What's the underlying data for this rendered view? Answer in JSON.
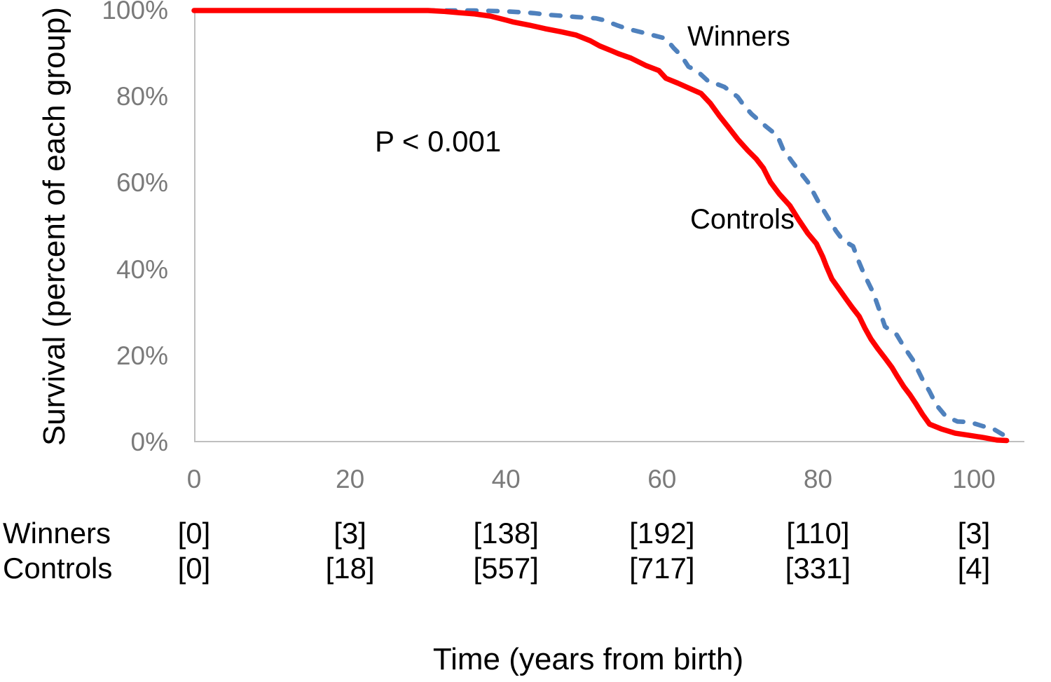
{
  "chart": {
    "annotations": {
      "p_value": "P < 0.001",
      "winners_label": "Winners",
      "controls_label": "Controls"
    },
    "colors": {
      "winners_line": "#4f81bd",
      "controls_line": "#ff0000",
      "axis_line": "#bfbfbf",
      "tick_text": "#7a7a7a",
      "text": "#000000"
    }
  },
  "chart_data": {
    "type": "line",
    "title": "",
    "xlabel": "Time (years from birth)",
    "ylabel": "Survival (percent of each group)",
    "xlim": [
      0,
      106.5
    ],
    "ylim": [
      0,
      100
    ],
    "grid": false,
    "legend_position": "inline-labels",
    "x_ticks": [
      {
        "v": 0,
        "label": "0"
      },
      {
        "v": 20,
        "label": "20"
      },
      {
        "v": 40,
        "label": "40"
      },
      {
        "v": 60,
        "label": "60"
      },
      {
        "v": 80,
        "label": "80"
      },
      {
        "v": 100,
        "label": "100"
      }
    ],
    "y_ticks": [
      {
        "v": 0,
        "label": "0%"
      },
      {
        "v": 20,
        "label": "20%"
      },
      {
        "v": 40,
        "label": "40%"
      },
      {
        "v": 60,
        "label": "60%"
      },
      {
        "v": 80,
        "label": "80%"
      },
      {
        "v": 100,
        "label": "100%"
      }
    ],
    "series": [
      {
        "name": "Winners",
        "style": "dashed",
        "color": "#4f81bd",
        "points": [
          [
            0,
            100
          ],
          [
            10,
            100
          ],
          [
            20,
            100
          ],
          [
            30,
            100
          ],
          [
            33.5,
            100
          ],
          [
            36,
            100
          ],
          [
            38,
            99.9
          ],
          [
            40,
            99.8
          ],
          [
            42,
            99.6
          ],
          [
            43.5,
            99.4
          ],
          [
            45.5,
            99.0
          ],
          [
            47,
            98.8
          ],
          [
            49,
            98.5
          ],
          [
            51.5,
            98.2
          ],
          [
            52.5,
            97.8
          ],
          [
            54.2,
            96.6
          ],
          [
            55.5,
            95.8
          ],
          [
            57.5,
            94.9
          ],
          [
            59,
            94.2
          ],
          [
            60.5,
            93.5
          ],
          [
            61.5,
            91.3
          ],
          [
            62.5,
            89.5
          ],
          [
            63.4,
            87.0
          ],
          [
            64.5,
            86.0
          ],
          [
            66,
            83.5
          ],
          [
            67,
            83.0
          ],
          [
            68,
            82.3
          ],
          [
            69.7,
            80.0
          ],
          [
            70.5,
            78.0
          ],
          [
            71.5,
            76.0
          ],
          [
            73.3,
            73.2
          ],
          [
            74.8,
            71.0
          ],
          [
            75.5,
            68.0
          ],
          [
            76.6,
            65.2
          ],
          [
            77.6,
            62.8
          ],
          [
            78.7,
            60.3
          ],
          [
            80,
            55.9
          ],
          [
            81.4,
            51.7
          ],
          [
            82.3,
            49.0
          ],
          [
            83.2,
            46.8
          ],
          [
            84.5,
            45.4
          ],
          [
            85.2,
            42.0
          ],
          [
            85.9,
            39.0
          ],
          [
            87.1,
            34.6
          ],
          [
            88,
            30.0
          ],
          [
            88.6,
            26.8
          ],
          [
            90.1,
            24.9
          ],
          [
            91,
            22.2
          ],
          [
            92.2,
            19.0
          ],
          [
            93.4,
            14.6
          ],
          [
            94.3,
            11.8
          ],
          [
            95.2,
            8.6
          ],
          [
            96.4,
            6.0
          ],
          [
            97.9,
            4.8
          ],
          [
            99.4,
            4.7
          ],
          [
            101.2,
            3.7
          ],
          [
            102.4,
            3.2
          ],
          [
            103.5,
            2.0
          ],
          [
            104,
            1.5
          ]
        ]
      },
      {
        "name": "Controls",
        "style": "solid",
        "color": "#ff0000",
        "points": [
          [
            0,
            100
          ],
          [
            10,
            100
          ],
          [
            20,
            100
          ],
          [
            30,
            100
          ],
          [
            32,
            99.8
          ],
          [
            34,
            99.5
          ],
          [
            36,
            99.2
          ],
          [
            38,
            98.7
          ],
          [
            40,
            97.8
          ],
          [
            41,
            97.3
          ],
          [
            43,
            96.6
          ],
          [
            45,
            95.8
          ],
          [
            47,
            95.1
          ],
          [
            49,
            94.3
          ],
          [
            50.8,
            93.0
          ],
          [
            52,
            91.8
          ],
          [
            53.5,
            90.7
          ],
          [
            54.4,
            90.0
          ],
          [
            56,
            89.0
          ],
          [
            58,
            87.2
          ],
          [
            59.6,
            86.1
          ],
          [
            60.5,
            84.3
          ],
          [
            62,
            83.2
          ],
          [
            63.5,
            82.0
          ],
          [
            65,
            80.8
          ],
          [
            66.2,
            78.5
          ],
          [
            67.4,
            75.5
          ],
          [
            68.5,
            73.0
          ],
          [
            69.7,
            70.2
          ],
          [
            71,
            67.6
          ],
          [
            72.1,
            65.6
          ],
          [
            73,
            63.5
          ],
          [
            73.9,
            60.3
          ],
          [
            75,
            57.6
          ],
          [
            76.4,
            54.8
          ],
          [
            77.5,
            51.6
          ],
          [
            78.7,
            48.4
          ],
          [
            79.8,
            46.0
          ],
          [
            80.6,
            43.0
          ],
          [
            81.1,
            40.7
          ],
          [
            81.8,
            37.8
          ],
          [
            82.7,
            35.5
          ],
          [
            83.6,
            33.2
          ],
          [
            84.4,
            31.2
          ],
          [
            85.3,
            29.1
          ],
          [
            86,
            26.5
          ],
          [
            86.8,
            23.9
          ],
          [
            87.7,
            21.6
          ],
          [
            88.6,
            19.5
          ],
          [
            89.5,
            17.3
          ],
          [
            90.2,
            15.2
          ],
          [
            91,
            12.9
          ],
          [
            91.8,
            11.0
          ],
          [
            92.5,
            9.1
          ],
          [
            93.4,
            6.5
          ],
          [
            94.3,
            4.2
          ],
          [
            95.8,
            3.1
          ],
          [
            97.6,
            2.1
          ],
          [
            99.4,
            1.6
          ],
          [
            101.2,
            1.1
          ],
          [
            103,
            0.5
          ],
          [
            104.2,
            0.4
          ]
        ]
      }
    ],
    "at_risk_table": {
      "columns": [
        0,
        20,
        40,
        60,
        80,
        100
      ],
      "rows": [
        {
          "label": "Winners",
          "values": [
            "[0]",
            "[3]",
            "[138]",
            "[192]",
            "[110]",
            "[3]"
          ]
        },
        {
          "label": "Controls",
          "values": [
            "[0]",
            "[18]",
            "[557]",
            "[717]",
            "[331]",
            "[4]"
          ]
        }
      ]
    }
  }
}
